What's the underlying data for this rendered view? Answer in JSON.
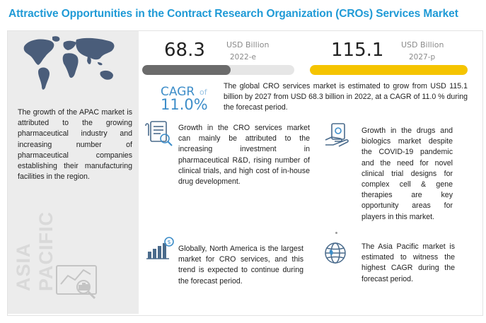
{
  "header": {
    "title": "Attractive Opportunities in the Contract Research Organization (CROs) Services Market"
  },
  "left_panel": {
    "text": "The growth of the APAC market is attributed to the growing pharmaceutical industry and increasing number of pharmaceutical companies establishing their manufacturing facilities in the region.",
    "watermark_line1": "ASIA",
    "watermark_line2": "PACIFIC"
  },
  "stats": {
    "value_2022": "68.3",
    "unit_2022": "USD Billion",
    "year_2022": "2022-e",
    "value_2027": "115.1",
    "unit_2027": "USD Billion",
    "year_2027": "2027-p",
    "bar_2022_fraction": 0.58,
    "bar_2027_fraction": 1.0,
    "bar_2022_color": "#6b6b6b",
    "bar_2027_color": "#f5c400",
    "cagr_label": "CAGR",
    "cagr_of": "of",
    "cagr_value": "11.0%",
    "summary": "The global CRO services market is estimated to grow from USD 115.1 billion by 2027 from USD 68.3 billion in 2022, at a CAGR of 11.0 % during the forecast period."
  },
  "insights": [
    {
      "icon": "research-document-icon",
      "text": "Growth in the CRO services market can mainly be attributed to the increasing investment in pharmaceutical R&D, rising number of clinical trials, and high cost of in-house drug development."
    },
    {
      "icon": "drugs-biologics-icon",
      "text": "Growth in the drugs and biologics market despite the COVID-19 pandemic and the need for novel clinical trial designs for complex cell & gene therapies are key opportunity areas for players in this market."
    },
    {
      "icon": "growth-chart-icon",
      "text": "Globally, North America is the largest market for CRO services, and this trend is expected to continue during the forecast period."
    },
    {
      "icon": "globe-icon",
      "text": "The Asia Pacific market is estimated to witness the highest CAGR during the forecast period."
    }
  ],
  "colors": {
    "title": "#1f9ad6",
    "accent_blue": "#3e8ec9",
    "panel_grey": "#ececec"
  }
}
